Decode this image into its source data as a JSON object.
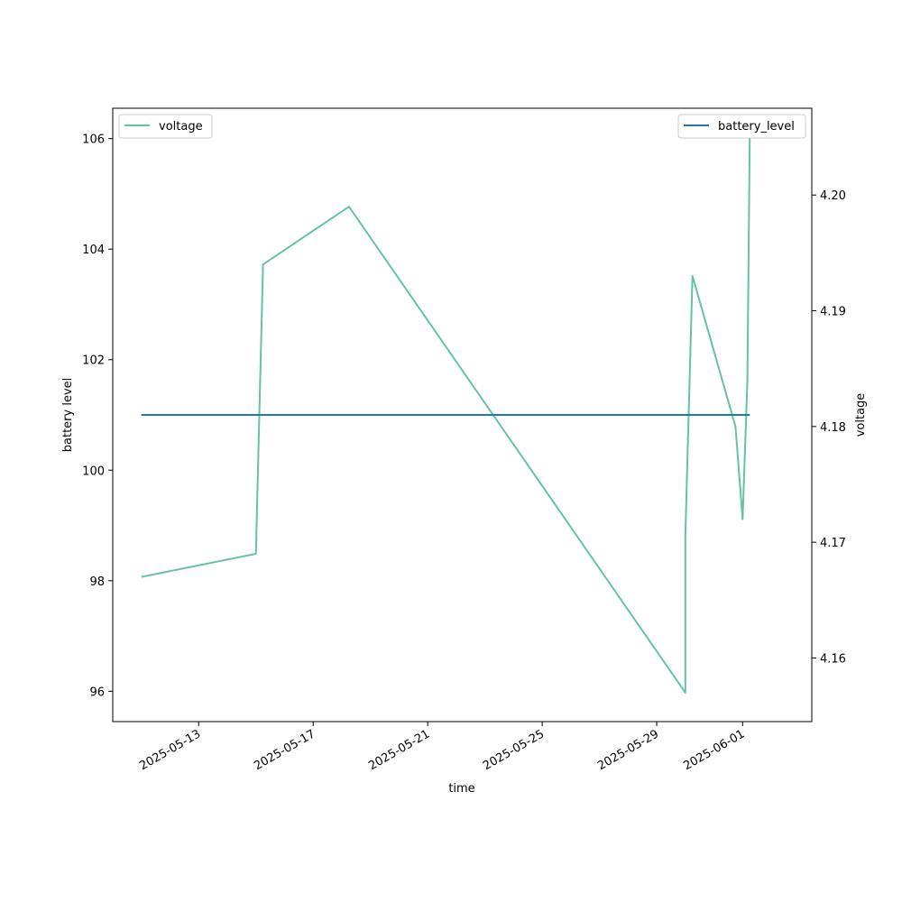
{
  "chart_data": {
    "type": "line",
    "xlabel": "time",
    "ylabel_left": "battery level",
    "ylabel_right": "voltage",
    "xlim": [
      "2025-05-10T00:00",
      "2025-06-03T10:00"
    ],
    "ylim_left": [
      95.45,
      106.55
    ],
    "ylim_right": [
      4.1545,
      4.2075
    ],
    "x_ticks": [
      "2025-05-13",
      "2025-05-17",
      "2025-05-21",
      "2025-05-25",
      "2025-05-29",
      "2025-06-01"
    ],
    "y_ticks_left": [
      96,
      98,
      100,
      102,
      104,
      106
    ],
    "y_ticks_right": [
      "4.16",
      "4.17",
      "4.18",
      "4.19",
      "4.20"
    ],
    "series": [
      {
        "name": "voltage",
        "axis": "right",
        "color": "#66c2a5",
        "points": [
          [
            "2025-05-11T00:00",
            4.167
          ],
          [
            "2025-05-15T00:00",
            4.169
          ],
          [
            "2025-05-15T06:00",
            4.194
          ],
          [
            "2025-05-18T06:00",
            4.199
          ],
          [
            "2025-05-30T00:00",
            4.157
          ],
          [
            "2025-05-30T00:00",
            4.1705
          ],
          [
            "2025-05-30T06:00",
            4.193
          ],
          [
            "2025-05-31T18:00",
            4.18
          ],
          [
            "2025-06-01T00:00",
            4.172
          ],
          [
            "2025-06-01T04:00",
            4.184
          ],
          [
            "2025-06-01T06:00",
            4.205
          ]
        ]
      },
      {
        "name": "battery_level",
        "axis": "left",
        "color": "#1f77b4",
        "points": [
          [
            "2025-05-11T00:00",
            101
          ],
          [
            "2025-06-01T06:00",
            101
          ]
        ]
      }
    ],
    "legend_left": {
      "label": "voltage",
      "placement": "upper-left"
    },
    "legend_right": {
      "label": "battery_level",
      "placement": "upper-right"
    },
    "grid": false
  }
}
